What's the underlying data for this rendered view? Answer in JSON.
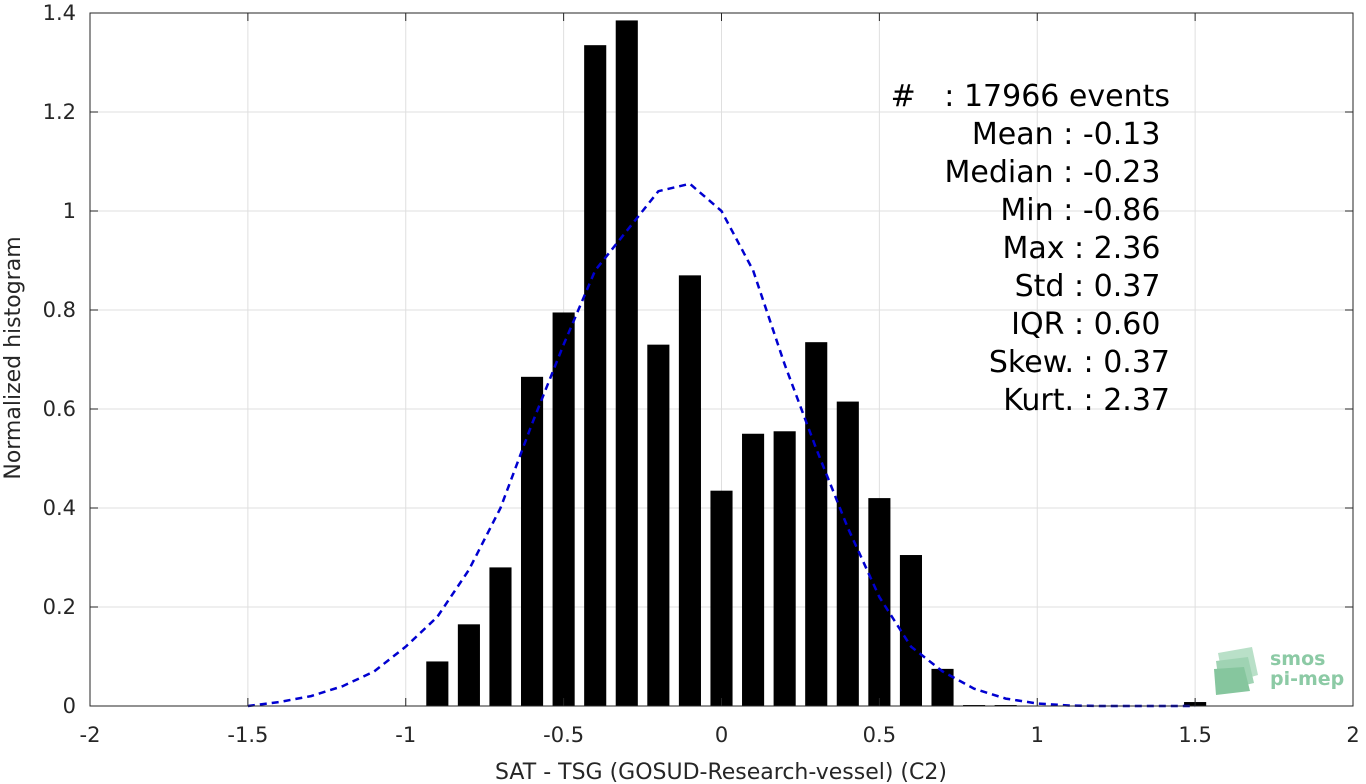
{
  "chart_data": {
    "type": "bar",
    "xlabel": "SAT - TSG (GOSUD-Research-vessel) (C2)",
    "ylabel": "Normalized histogram",
    "xlim": [
      -2,
      2
    ],
    "ylim": [
      0,
      1.4
    ],
    "xticks": [
      -2,
      -1.5,
      -1,
      -0.5,
      0,
      0.5,
      1,
      1.5,
      2
    ],
    "xtick_labels": [
      "-2",
      "-1.5",
      "-1",
      "-0.5",
      "0",
      "0.5",
      "1",
      "1.5",
      "2"
    ],
    "yticks": [
      0,
      0.2,
      0.4,
      0.6,
      0.8,
      1,
      1.2,
      1.4
    ],
    "ytick_labels": [
      "0",
      "0.2",
      "0.4",
      "0.6",
      "0.8",
      "1",
      "1.2",
      "1.4"
    ],
    "grid": true,
    "bar_width": 0.07,
    "bar_color": "#000000",
    "bars": [
      {
        "x": -0.9,
        "value": 0.09
      },
      {
        "x": -0.8,
        "value": 0.165
      },
      {
        "x": -0.7,
        "value": 0.28
      },
      {
        "x": -0.6,
        "value": 0.665
      },
      {
        "x": -0.5,
        "value": 0.795
      },
      {
        "x": -0.4,
        "value": 1.335
      },
      {
        "x": -0.3,
        "value": 1.385
      },
      {
        "x": -0.2,
        "value": 0.73
      },
      {
        "x": -0.1,
        "value": 0.87
      },
      {
        "x": 0.0,
        "value": 0.435
      },
      {
        "x": 0.1,
        "value": 0.55
      },
      {
        "x": 0.2,
        "value": 0.555
      },
      {
        "x": 0.3,
        "value": 0.735
      },
      {
        "x": 0.4,
        "value": 0.615
      },
      {
        "x": 0.5,
        "value": 0.42
      },
      {
        "x": 0.6,
        "value": 0.305
      },
      {
        "x": 0.7,
        "value": 0.075
      },
      {
        "x": 0.8,
        "value": 0.002
      },
      {
        "x": 0.9,
        "value": 0.002
      },
      {
        "x": 1.5,
        "value": 0.008
      }
    ],
    "fit_curve": {
      "style": "dashed",
      "color": "#0000d0",
      "x": [
        -1.5,
        -1.4,
        -1.3,
        -1.2,
        -1.1,
        -1.0,
        -0.9,
        -0.8,
        -0.7,
        -0.6,
        -0.5,
        -0.4,
        -0.3,
        -0.2,
        -0.1,
        0.0,
        0.1,
        0.2,
        0.3,
        0.4,
        0.5,
        0.6,
        0.7,
        0.8,
        0.9,
        1.0,
        1.1,
        1.2,
        1.3,
        1.4,
        1.5
      ],
      "y": [
        0.0,
        0.008,
        0.02,
        0.04,
        0.07,
        0.12,
        0.18,
        0.275,
        0.4,
        0.57,
        0.73,
        0.88,
        0.96,
        1.04,
        1.055,
        1.0,
        0.88,
        0.69,
        0.52,
        0.36,
        0.22,
        0.12,
        0.07,
        0.035,
        0.015,
        0.005,
        0.001,
        0.0,
        0.0,
        0.0,
        0.0
      ]
    }
  },
  "stats": [
    "#   : 17966 events",
    "Mean : -0.13 ",
    "Median : -0.23 ",
    "Min : -0.86 ",
    "Max : 2.36 ",
    "Std : 0.37 ",
    "IQR : 0.60 ",
    "Skew. : 0.37",
    "Kurt. : 2.37"
  ],
  "logo": {
    "line1": "smos",
    "line2": "pi-mep"
  }
}
